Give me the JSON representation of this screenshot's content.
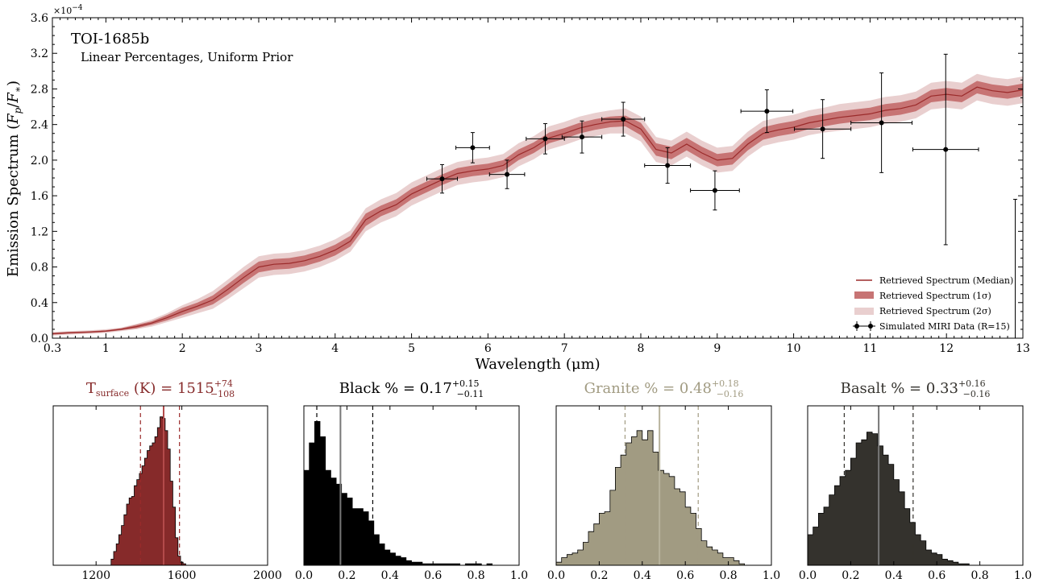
{
  "chart_data": [
    {
      "type": "line",
      "title": "TOI-1685b",
      "subtitle": "Linear Percentages, Uniform Prior",
      "xlabel": "Wavelength (μm)",
      "ylabel": "Emission Spectrum (F_p/F_*)",
      "scale_label": "×10",
      "scale_exponent": "−4",
      "xlim": [
        0.3,
        13
      ],
      "ylim": [
        0,
        3.6
      ],
      "x_ticks": [
        "0.3",
        "1",
        "2",
        "3",
        "4",
        "5",
        "6",
        "7",
        "8",
        "9",
        "10",
        "11",
        "12",
        "13"
      ],
      "y_ticks": [
        "0.0",
        "0.4",
        "0.8",
        "1.2",
        "1.6",
        "2.0",
        "2.4",
        "2.8",
        "3.2",
        "3.6"
      ],
      "legend_position": "bottom-right",
      "legend": [
        "Retrieved Spectrum (Median)",
        "Retrieved Spectrum (1σ)",
        "Retrieved Spectrum (2σ)",
        "Simulated MIRI Data (R=15)"
      ],
      "colors": {
        "median": "#9b2b2b",
        "sigma1": "#c77474",
        "sigma2": "#e9cfcf",
        "data": "#000000"
      },
      "median_spectrum": {
        "x": [
          0.3,
          0.5,
          0.8,
          1.0,
          1.2,
          1.4,
          1.6,
          1.8,
          2.0,
          2.2,
          2.4,
          2.6,
          2.8,
          3.0,
          3.2,
          3.4,
          3.6,
          3.8,
          4.0,
          4.2,
          4.4,
          4.6,
          4.8,
          5.0,
          5.2,
          5.4,
          5.6,
          5.8,
          6.0,
          6.2,
          6.4,
          6.6,
          6.8,
          7.0,
          7.2,
          7.4,
          7.6,
          7.8,
          8.0,
          8.2,
          8.4,
          8.6,
          8.8,
          9.0,
          9.2,
          9.4,
          9.6,
          9.8,
          10.0,
          10.2,
          10.4,
          10.6,
          10.8,
          11.0,
          11.2,
          11.4,
          11.6,
          11.8,
          12.0,
          12.2,
          12.4,
          12.6,
          12.8,
          13.0
        ],
        "y": [
          0.05,
          0.06,
          0.07,
          0.08,
          0.1,
          0.13,
          0.17,
          0.23,
          0.3,
          0.36,
          0.43,
          0.55,
          0.68,
          0.8,
          0.83,
          0.84,
          0.87,
          0.92,
          0.99,
          1.09,
          1.33,
          1.43,
          1.5,
          1.62,
          1.7,
          1.78,
          1.85,
          1.88,
          1.9,
          1.94,
          2.06,
          2.14,
          2.25,
          2.3,
          2.36,
          2.4,
          2.43,
          2.44,
          2.35,
          2.12,
          2.08,
          2.18,
          2.08,
          2.0,
          2.02,
          2.18,
          2.3,
          2.34,
          2.37,
          2.42,
          2.45,
          2.48,
          2.5,
          2.52,
          2.56,
          2.58,
          2.62,
          2.72,
          2.74,
          2.72,
          2.82,
          2.78,
          2.76,
          2.79
        ],
        "sigma1_halfwidth": [
          0.01,
          0.01,
          0.01,
          0.01,
          0.01,
          0.02,
          0.02,
          0.03,
          0.04,
          0.04,
          0.05,
          0.06,
          0.06,
          0.06,
          0.06,
          0.06,
          0.06,
          0.06,
          0.06,
          0.06,
          0.07,
          0.06,
          0.06,
          0.06,
          0.06,
          0.06,
          0.06,
          0.06,
          0.06,
          0.06,
          0.06,
          0.06,
          0.06,
          0.06,
          0.06,
          0.06,
          0.06,
          0.06,
          0.07,
          0.07,
          0.07,
          0.07,
          0.07,
          0.07,
          0.07,
          0.07,
          0.07,
          0.07,
          0.07,
          0.07,
          0.07,
          0.07,
          0.07,
          0.07,
          0.07,
          0.07,
          0.07,
          0.07,
          0.07,
          0.07,
          0.07,
          0.07,
          0.07,
          0.07
        ],
        "sigma2_halfwidth": [
          0.02,
          0.02,
          0.02,
          0.02,
          0.02,
          0.03,
          0.04,
          0.05,
          0.07,
          0.08,
          0.1,
          0.11,
          0.12,
          0.12,
          0.12,
          0.12,
          0.12,
          0.12,
          0.12,
          0.12,
          0.13,
          0.13,
          0.13,
          0.13,
          0.13,
          0.13,
          0.13,
          0.13,
          0.13,
          0.13,
          0.13,
          0.13,
          0.13,
          0.13,
          0.13,
          0.13,
          0.13,
          0.14,
          0.14,
          0.14,
          0.14,
          0.14,
          0.14,
          0.14,
          0.14,
          0.14,
          0.14,
          0.14,
          0.14,
          0.14,
          0.14,
          0.15,
          0.15,
          0.15,
          0.15,
          0.15,
          0.15,
          0.15,
          0.15,
          0.15,
          0.15,
          0.15,
          0.15,
          0.15
        ]
      },
      "miri_data": [
        {
          "x": 5.4,
          "y": 1.79,
          "xerr": 0.2,
          "yerr": 0.16
        },
        {
          "x": 5.8,
          "y": 2.14,
          "xerr": 0.22,
          "yerr": 0.17
        },
        {
          "x": 6.25,
          "y": 1.84,
          "xerr": 0.23,
          "yerr": 0.16
        },
        {
          "x": 6.75,
          "y": 2.24,
          "xerr": 0.25,
          "yerr": 0.17
        },
        {
          "x": 7.23,
          "y": 2.26,
          "xerr": 0.26,
          "yerr": 0.18
        },
        {
          "x": 7.77,
          "y": 2.46,
          "xerr": 0.28,
          "yerr": 0.19
        },
        {
          "x": 8.35,
          "y": 1.94,
          "xerr": 0.3,
          "yerr": 0.2
        },
        {
          "x": 8.97,
          "y": 1.66,
          "xerr": 0.32,
          "yerr": 0.22
        },
        {
          "x": 9.65,
          "y": 2.55,
          "xerr": 0.34,
          "yerr": 0.24
        },
        {
          "x": 10.38,
          "y": 2.35,
          "xerr": 0.37,
          "yerr": 0.33
        },
        {
          "x": 11.15,
          "y": 2.42,
          "xerr": 0.4,
          "yerr": 0.56
        },
        {
          "x": 11.99,
          "y": 2.12,
          "xerr": 0.43,
          "yerr": 1.07
        },
        {
          "x": 12.9,
          "y": 0.78,
          "xerr": 0.0,
          "yerr": 0.78
        }
      ]
    },
    {
      "type": "bar",
      "title_main": "T",
      "title_sub": "surface",
      "title_rest": " (K) = 1515",
      "title_sup": "+74",
      "title_inf": "−108",
      "color": "#862a2a",
      "xlim": [
        1000,
        2000
      ],
      "x_ticks": [
        "1200",
        "1600",
        "2000"
      ],
      "median": 1515,
      "interval": [
        1407,
        1589
      ],
      "histogram": {
        "bin_start": 1270,
        "bin_width": 12,
        "counts": [
          0.04,
          0.09,
          0.14,
          0.2,
          0.26,
          0.33,
          0.4,
          0.44,
          0.45,
          0.52,
          0.56,
          0.6,
          0.65,
          0.7,
          0.75,
          0.78,
          0.8,
          0.84,
          0.9,
          0.97,
          0.96,
          0.88,
          0.76,
          0.55,
          0.38,
          0.18,
          0.06,
          0.02,
          0.01
        ]
      }
    },
    {
      "type": "bar",
      "title_main": "Black % = 0.17",
      "title_sup": "+0.15",
      "title_inf": "−0.11",
      "color": "#000000",
      "xlim": [
        0,
        1
      ],
      "x_ticks": [
        "0.0",
        "0.2",
        "0.4",
        "0.6",
        "0.8",
        "1.0"
      ],
      "median": 0.17,
      "interval": [
        0.06,
        0.32
      ],
      "histogram": {
        "bin_start": 0,
        "bin_width": 0.025,
        "counts": [
          0.62,
          0.8,
          0.94,
          0.84,
          0.62,
          0.57,
          0.53,
          0.47,
          0.44,
          0.37,
          0.37,
          0.35,
          0.29,
          0.2,
          0.14,
          0.1,
          0.08,
          0.06,
          0.05,
          0.03,
          0.02,
          0.02,
          0.01,
          0.01,
          0.01,
          0.01,
          0.01,
          0.01,
          0.01,
          0.0,
          0.01,
          0.01,
          0.01,
          0.0,
          0.01,
          0,
          0,
          0,
          0,
          0
        ]
      }
    },
    {
      "type": "bar",
      "title_main": "Granite % = 0.48",
      "title_sup": "+0.18",
      "title_inf": "−0.16",
      "color": "#a19b82",
      "xlim": [
        0,
        1
      ],
      "x_ticks": [
        "0.0",
        "0.2",
        "0.4",
        "0.6",
        "0.8",
        "1.0"
      ],
      "median": 0.48,
      "interval": [
        0.32,
        0.66
      ],
      "histogram": {
        "bin_start": 0,
        "bin_width": 0.025,
        "counts": [
          0.02,
          0.05,
          0.07,
          0.08,
          0.1,
          0.15,
          0.22,
          0.27,
          0.34,
          0.35,
          0.49,
          0.64,
          0.72,
          0.8,
          0.84,
          0.88,
          0.82,
          0.88,
          0.74,
          0.62,
          0.6,
          0.58,
          0.5,
          0.48,
          0.38,
          0.34,
          0.24,
          0.16,
          0.12,
          0.1,
          0.08,
          0.05,
          0.05,
          0.03,
          0.01,
          0,
          0,
          0,
          0,
          0
        ]
      }
    },
    {
      "type": "bar",
      "title_main": "Basalt % = 0.33",
      "title_sup": "+0.16",
      "title_inf": "−0.16",
      "color": "#34322d",
      "xlim": [
        0,
        1
      ],
      "x_ticks": [
        "0.0",
        "0.2",
        "0.4",
        "0.6",
        "0.8",
        "1.0"
      ],
      "median": 0.33,
      "interval": [
        0.17,
        0.49
      ],
      "histogram": {
        "bin_start": 0,
        "bin_width": 0.025,
        "counts": [
          0.2,
          0.25,
          0.34,
          0.38,
          0.46,
          0.52,
          0.58,
          0.62,
          0.7,
          0.8,
          0.82,
          0.87,
          0.86,
          0.78,
          0.72,
          0.66,
          0.56,
          0.48,
          0.37,
          0.28,
          0.2,
          0.16,
          0.1,
          0.08,
          0.07,
          0.04,
          0.03,
          0.02,
          0.01,
          0.01,
          0,
          0,
          0,
          0,
          0,
          0,
          0,
          0,
          0,
          0
        ]
      }
    }
  ]
}
